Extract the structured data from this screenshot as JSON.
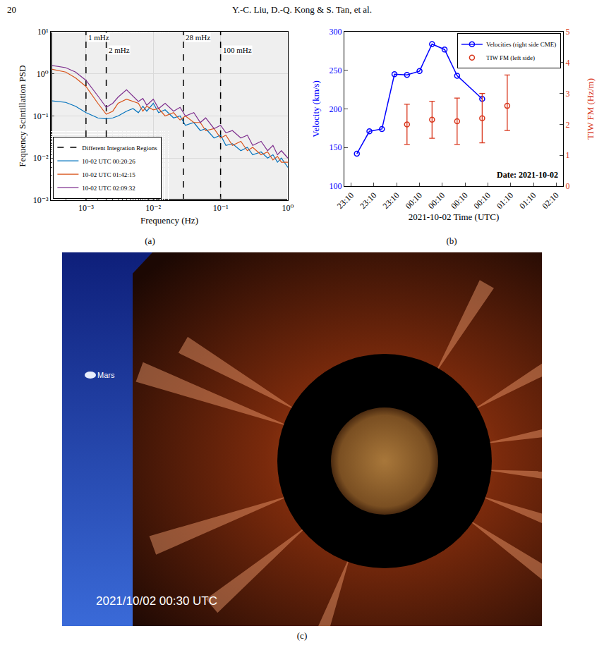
{
  "page": {
    "page_number": "20",
    "running_head": "Y.-C. Liu, D.-Q. Kong & S. Tan, et al."
  },
  "chart_data": [
    {
      "type": "line",
      "panel": "(a)",
      "x_label": "Frequency (Hz)",
      "y_label": "Fequency Scintillation PSD",
      "log": true,
      "grid": true,
      "legend": "lower left",
      "xlim": [
        0.0003,
        1
      ],
      "ylim": [
        0.001,
        10
      ],
      "xticks": [
        {
          "value": 0.001,
          "label": "10⁻³"
        },
        {
          "value": 0.01,
          "label": "10⁻²"
        },
        {
          "value": 0.1,
          "label": "10⁻¹"
        },
        {
          "value": 1,
          "label": "10⁰"
        }
      ],
      "yticks": [
        {
          "value": 0.001,
          "label": "10⁻³"
        },
        {
          "value": 0.01,
          "label": "10⁻²"
        },
        {
          "value": 0.1,
          "label": "10⁻¹"
        },
        {
          "value": 1,
          "label": "10⁰"
        },
        {
          "value": 10,
          "label": "10¹"
        }
      ],
      "reference_lines": {
        "name": "Different Integration Regions",
        "color": "#000000",
        "line_style": "dashed",
        "x": [
          0.001,
          0.002,
          0.028,
          0.1
        ],
        "labels": [
          "1 mHz",
          "2 mHz",
          "28 mHz",
          "100 mHz"
        ]
      },
      "x": [
        0.0003,
        0.0005,
        0.0007,
        0.001,
        0.0015,
        0.002,
        0.0025,
        0.003,
        0.004,
        0.005,
        0.006,
        0.007,
        0.008,
        0.01,
        0.012,
        0.015,
        0.02,
        0.025,
        0.03,
        0.04,
        0.05,
        0.06,
        0.08,
        0.1,
        0.12,
        0.15,
        0.2,
        0.25,
        0.3,
        0.4,
        0.5,
        0.6,
        0.7,
        0.8,
        1
      ],
      "series": [
        {
          "name": "10-02 UTC 00:20:26",
          "color": "#0072BD",
          "line_style": "solid",
          "values": [
            0.23,
            0.21,
            0.17,
            0.12,
            0.09,
            0.085,
            0.09,
            0.1,
            0.13,
            0.15,
            0.12,
            0.17,
            0.13,
            0.2,
            0.12,
            0.14,
            0.09,
            0.1,
            0.06,
            0.07,
            0.045,
            0.05,
            0.03,
            0.035,
            0.02,
            0.022,
            0.015,
            0.018,
            0.012,
            0.014,
            0.01,
            0.012,
            0.008,
            0.01,
            0.006
          ]
        },
        {
          "name": "10-02 UTC 01:42:15",
          "color": "#D95319",
          "line_style": "solid",
          "values": [
            1.3,
            1.1,
            0.8,
            0.5,
            0.2,
            0.11,
            0.13,
            0.2,
            0.25,
            0.22,
            0.2,
            0.13,
            0.17,
            0.14,
            0.15,
            0.1,
            0.12,
            0.08,
            0.1,
            0.07,
            0.07,
            0.045,
            0.05,
            0.03,
            0.035,
            0.02,
            0.025,
            0.015,
            0.018,
            0.012,
            0.014,
            0.009,
            0.011,
            0.008,
            0.008
          ]
        },
        {
          "name": "10-02 UTC 02:09:32",
          "color": "#7E2F8E",
          "line_style": "solid",
          "values": [
            1.6,
            1.4,
            1.1,
            0.7,
            0.3,
            0.16,
            0.2,
            0.28,
            0.42,
            0.3,
            0.22,
            0.26,
            0.18,
            0.25,
            0.15,
            0.2,
            0.13,
            0.16,
            0.1,
            0.12,
            0.07,
            0.09,
            0.05,
            0.06,
            0.04,
            0.045,
            0.03,
            0.035,
            0.02,
            0.025,
            0.015,
            0.02,
            0.012,
            0.015,
            0.01
          ]
        }
      ]
    },
    {
      "type": "line",
      "panel": "(b)",
      "x_label": "2021-10-02 Time (UTC)",
      "y_label": "Velocity (km/s)",
      "y2_label": "TIW FM (Hz/m)",
      "annotation": "Date: 2021-10-02",
      "grid": false,
      "legend": "upper right",
      "xlim": [
        -0.3,
        9.3
      ],
      "xticks": [
        {
          "value": 0,
          "label": "23:10"
        },
        {
          "value": 1,
          "label": "23:10"
        },
        {
          "value": 2,
          "label": "23:10"
        },
        {
          "value": 3,
          "label": "00:10"
        },
        {
          "value": 4,
          "label": "00:10"
        },
        {
          "value": 5,
          "label": "00:10"
        },
        {
          "value": 6,
          "label": "00:10"
        },
        {
          "value": 7,
          "label": "01:10"
        },
        {
          "value": 8,
          "label": "01:10"
        },
        {
          "value": 9,
          "label": "02:10"
        }
      ],
      "ylim": [
        100,
        300
      ],
      "yticks": [
        100,
        150,
        200,
        250,
        300
      ],
      "y2lim": [
        0,
        5
      ],
      "y2ticks": [
        0,
        1,
        2,
        3,
        4,
        5
      ],
      "series": [
        {
          "name": "Velocities (right side CME)",
          "color": "#0000FF",
          "type": "line",
          "marker": "circle-open",
          "line_style": "solid",
          "x": [
            0.25,
            0.8,
            1.35,
            1.9,
            2.45,
            3.0,
            3.55,
            4.1,
            4.65,
            5.75
          ],
          "values": [
            142,
            171,
            174,
            245,
            244,
            249,
            284,
            277,
            243,
            213
          ]
        },
        {
          "name": "TIW FM (left side)",
          "color": "#D9381E",
          "type": "scatter",
          "marker": "circle-open",
          "axis": "y2",
          "x": [
            2.45,
            3.55,
            4.65,
            5.75,
            6.85
          ],
          "values": [
            2.0,
            2.15,
            2.1,
            2.2,
            2.6
          ],
          "error_minus": [
            0.65,
            0.6,
            0.75,
            0.8,
            0.8
          ],
          "error_plus": [
            0.65,
            0.6,
            0.75,
            0.8,
            1.0
          ]
        }
      ]
    }
  ],
  "figure_c": {
    "panel": "(c)",
    "labels": {
      "planet": "Mars",
      "timestamp": "2021/10/02 00:30 UTC"
    }
  }
}
